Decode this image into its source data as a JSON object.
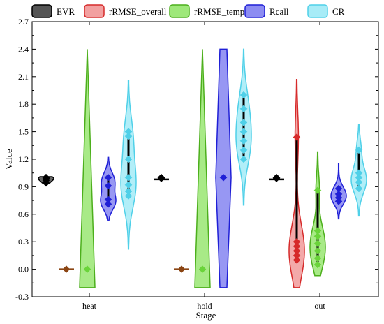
{
  "chart_data": {
    "type": "violin",
    "xlabel": "Stage",
    "ylabel": "Value",
    "categories": [
      "heat",
      "hold",
      "out"
    ],
    "ylim": [
      -0.3,
      2.7
    ],
    "yticks": [
      -0.3,
      0.0,
      0.3,
      0.6,
      0.9,
      1.2,
      1.5,
      1.8,
      2.1,
      2.4,
      2.7
    ],
    "ytick_labels": [
      "-0.3",
      "0.0",
      "0.3",
      "0.6",
      "0.9",
      "1.2",
      "1.5",
      "1.8",
      "2.1",
      "2.4",
      "2.7"
    ],
    "legend_position": "top",
    "series": [
      {
        "name": "EVR",
        "fill": "#555555",
        "stroke": "#000000",
        "marker": "#000000",
        "groups": [
          {
            "category": "heat",
            "min": 0.94,
            "max": 1.01,
            "points": [
              0.94,
              0.97,
              0.99,
              1.0,
              1.0
            ]
          },
          {
            "category": "hold",
            "min": 0.98,
            "max": 1.01,
            "points": [
              0.99,
              1.0,
              1.0
            ]
          },
          {
            "category": "out",
            "min": 0.98,
            "max": 1.01,
            "points": [
              0.99,
              1.0,
              1.0
            ]
          }
        ]
      },
      {
        "name": "rRMSE_overall",
        "fill": "#f2a0a0",
        "stroke": "#d62a2a",
        "marker": "#8b4513",
        "groups": [
          {
            "category": "heat",
            "min": 0.0,
            "max": 0.0,
            "points": [
              0.0
            ]
          },
          {
            "category": "hold",
            "min": 0.0,
            "max": 0.0,
            "points": [
              0.0
            ]
          },
          {
            "category": "out",
            "min": -0.2,
            "max": 2.07,
            "points": [
              0.1,
              0.15,
              0.2,
              0.25,
              0.3,
              1.44
            ],
            "marker_override": "#d62a2a"
          }
        ]
      },
      {
        "name": "rRMSE_temp",
        "fill": "#9ee87a",
        "stroke": "#4caf1c",
        "marker": "#6ad43a",
        "groups": [
          {
            "category": "heat",
            "min": -0.2,
            "max": 2.4,
            "points": [
              0.0
            ]
          },
          {
            "category": "hold",
            "min": -0.2,
            "max": 2.4,
            "points": [
              0.0
            ]
          },
          {
            "category": "out",
            "min": -0.07,
            "max": 1.28,
            "points": [
              0.05,
              0.12,
              0.2,
              0.28,
              0.36,
              0.42,
              0.86
            ]
          }
        ]
      },
      {
        "name": "Rcall",
        "fill": "#8c8cf2",
        "stroke": "#1f1fd6",
        "marker": "#1f1fd6",
        "groups": [
          {
            "category": "heat",
            "min": 0.53,
            "max": 1.22,
            "points": [
              0.71,
              0.76,
              0.91,
              1.0
            ]
          },
          {
            "category": "hold",
            "min": -0.2,
            "max": 2.4,
            "points": [
              1.0
            ]
          },
          {
            "category": "out",
            "min": 0.55,
            "max": 1.15,
            "points": [
              0.74,
              0.78,
              0.82,
              0.88
            ]
          }
        ]
      },
      {
        "name": "CR",
        "fill": "#a8ecf7",
        "stroke": "#4fd0e8",
        "marker": "#4fd0e8",
        "groups": [
          {
            "category": "heat",
            "min": 0.22,
            "max": 2.06,
            "points": [
              0.8,
              0.85,
              0.92,
              1.0,
              1.2,
              1.45,
              1.5
            ]
          },
          {
            "category": "hold",
            "min": 0.7,
            "max": 2.4,
            "points": [
              1.2,
              1.3,
              1.4,
              1.5,
              1.6,
              1.75,
              1.9
            ]
          },
          {
            "category": "out",
            "min": 0.58,
            "max": 1.58,
            "points": [
              0.88,
              0.95,
              1.0,
              1.05,
              1.3
            ]
          }
        ]
      }
    ]
  }
}
